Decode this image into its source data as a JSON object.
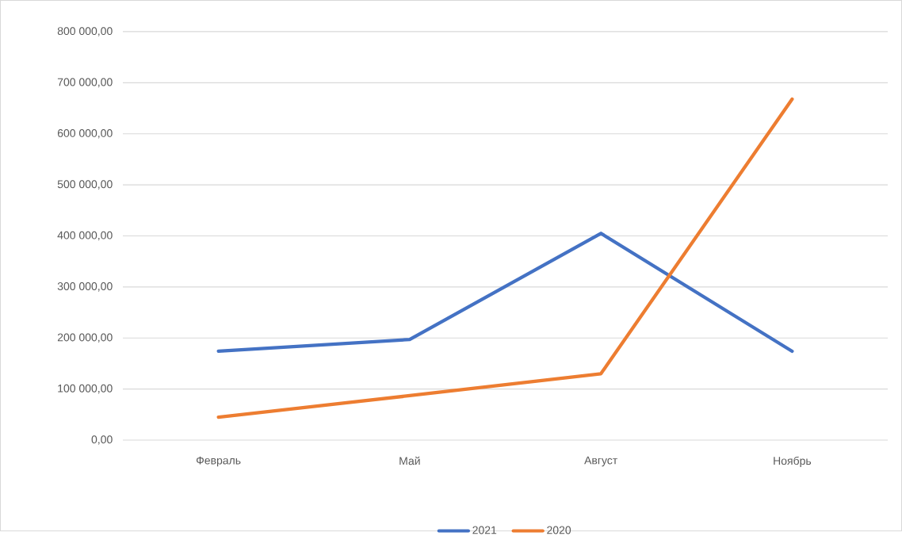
{
  "chart_data": {
    "type": "line",
    "categories": [
      "Февраль",
      "Май",
      "Август",
      "Ноябрь"
    ],
    "series": [
      {
        "name": "2021",
        "color": "#4472c4",
        "values": [
          174000,
          197000,
          405000,
          174000
        ]
      },
      {
        "name": "2020",
        "color": "#ed7d31",
        "values": [
          45000,
          87000,
          130000,
          668000
        ]
      }
    ],
    "ylim": [
      0,
      800000
    ],
    "yticks": [
      {
        "value": 0,
        "label": "0,00"
      },
      {
        "value": 100000,
        "label": "100 000,00"
      },
      {
        "value": 200000,
        "label": "200 000,00"
      },
      {
        "value": 300000,
        "label": "300 000,00"
      },
      {
        "value": 400000,
        "label": "400 000,00"
      },
      {
        "value": 500000,
        "label": "500 000,00"
      },
      {
        "value": 600000,
        "label": "600 000,00"
      },
      {
        "value": 700000,
        "label": "700 000,00"
      },
      {
        "value": 800000,
        "label": "800 000,00"
      }
    ],
    "grid": "y",
    "legend": "bottom",
    "marker": "none",
    "line_style": "solid"
  }
}
